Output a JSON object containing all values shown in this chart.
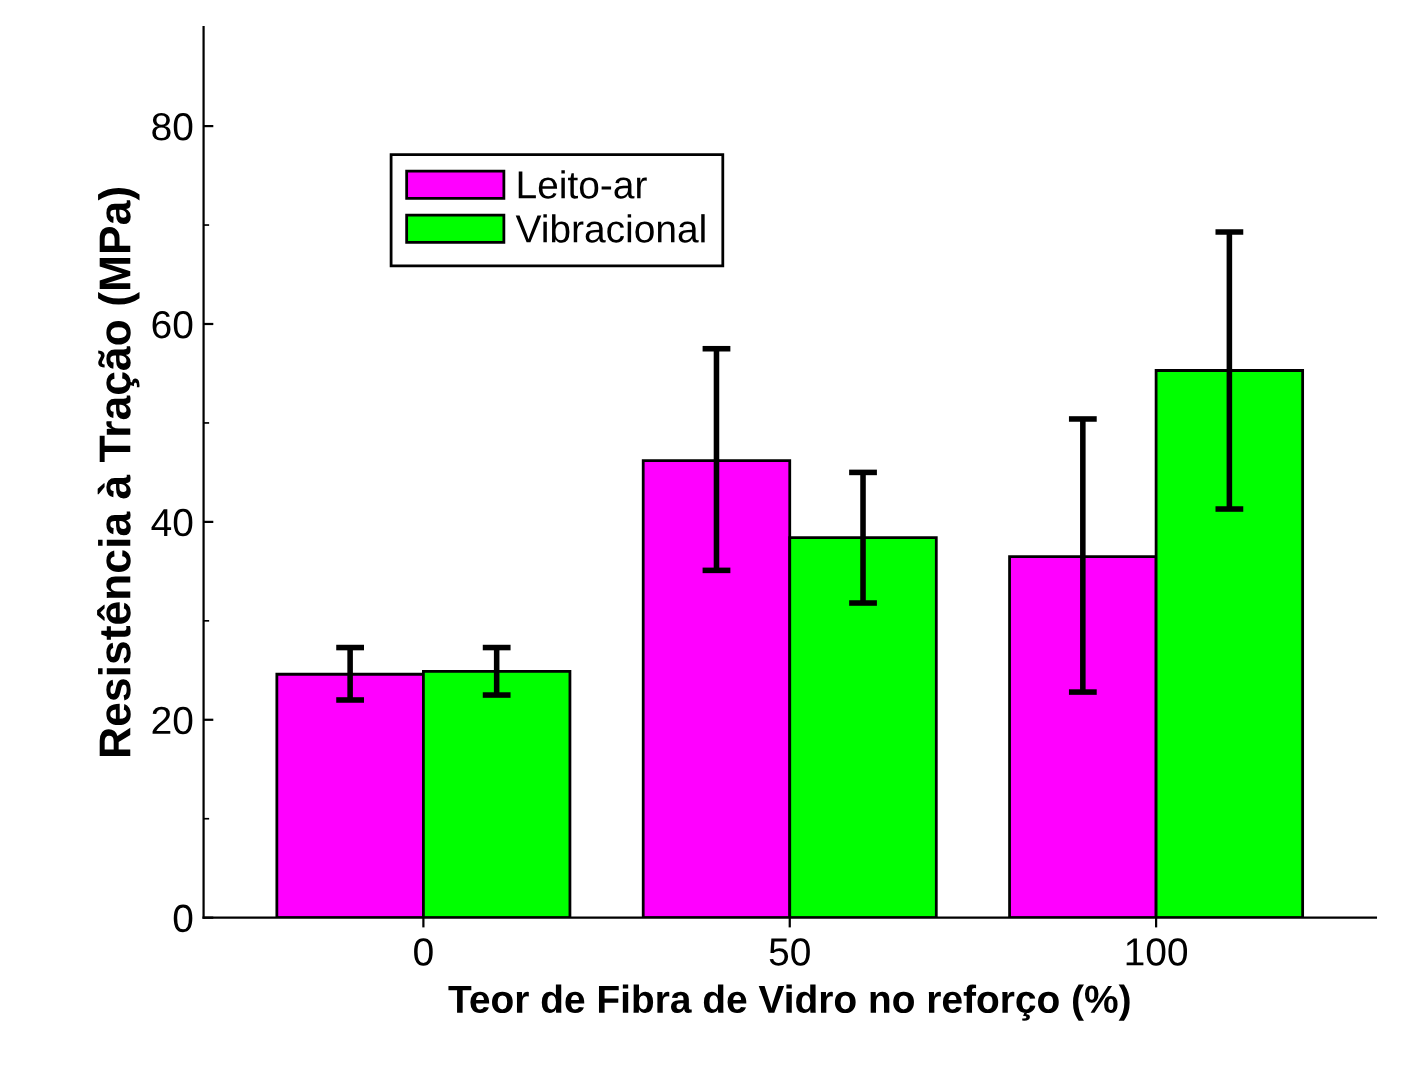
{
  "chart_data": {
    "type": "bar",
    "xlabel": "Teor de Fibra de Vidro no reforço (%)",
    "ylabel": "Resistência à Tração (MPa)",
    "categories": [
      "0",
      "50",
      "100"
    ],
    "series": [
      {
        "name": "Leito-ar",
        "color": "#ff00ff",
        "values": [
          24.6,
          46.2,
          36.5
        ],
        "errors": [
          [
            22.0,
            27.3
          ],
          [
            35.1,
            57.5
          ],
          [
            22.8,
            50.4
          ]
        ]
      },
      {
        "name": "Vibracional",
        "color": "#00ff00",
        "values": [
          24.9,
          38.4,
          55.3
        ],
        "errors": [
          [
            22.5,
            27.3
          ],
          [
            31.8,
            45.0
          ],
          [
            41.3,
            69.3
          ]
        ]
      }
    ],
    "ylim": [
      0,
      90
    ],
    "yticks": [
      0,
      20,
      40,
      60,
      80
    ],
    "grid": false,
    "legend": "top left"
  }
}
